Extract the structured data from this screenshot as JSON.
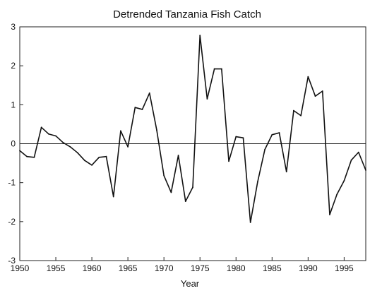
{
  "chart_data": {
    "type": "line",
    "title": "Detrended Tanzania Fish Catch",
    "xlabel": "Year",
    "ylabel": "",
    "xlim": [
      1950,
      1998
    ],
    "ylim": [
      -3,
      3
    ],
    "x_ticks": [
      1950,
      1955,
      1960,
      1965,
      1970,
      1975,
      1980,
      1985,
      1990,
      1995
    ],
    "y_ticks": [
      -3,
      -2,
      -1,
      0,
      1,
      2,
      3
    ],
    "zero_line": true,
    "grid": false,
    "legend": "none",
    "line_color": "#111111",
    "series": [
      {
        "x": [
          1950,
          1951,
          1952,
          1953,
          1954,
          1955,
          1956,
          1957,
          1958,
          1959,
          1960,
          1961,
          1962,
          1963,
          1964,
          1965,
          1966,
          1967,
          1968,
          1969,
          1970,
          1971,
          1972,
          1973,
          1974,
          1975,
          1976,
          1977,
          1978,
          1979,
          1980,
          1981,
          1982,
          1983,
          1984,
          1985,
          1986,
          1987,
          1988,
          1989,
          1990,
          1991,
          1992,
          1993,
          1994,
          1995,
          1996,
          1997,
          1998
        ],
        "y": [
          -0.18,
          -0.33,
          -0.35,
          0.42,
          0.25,
          0.2,
          0.03,
          -0.08,
          -0.23,
          -0.43,
          -0.55,
          -0.35,
          -0.33,
          -1.36,
          0.33,
          -0.08,
          0.93,
          0.88,
          1.3,
          0.35,
          -0.82,
          -1.25,
          -0.3,
          -1.48,
          -1.12,
          2.78,
          1.15,
          1.92,
          1.92,
          -0.45,
          0.18,
          0.15,
          -2.02,
          -0.98,
          -0.15,
          0.23,
          0.28,
          -0.72,
          0.85,
          0.72,
          1.72,
          1.22,
          1.35,
          -1.82,
          -1.3,
          -0.95,
          -0.42,
          -0.22,
          -0.68
        ]
      }
    ]
  }
}
